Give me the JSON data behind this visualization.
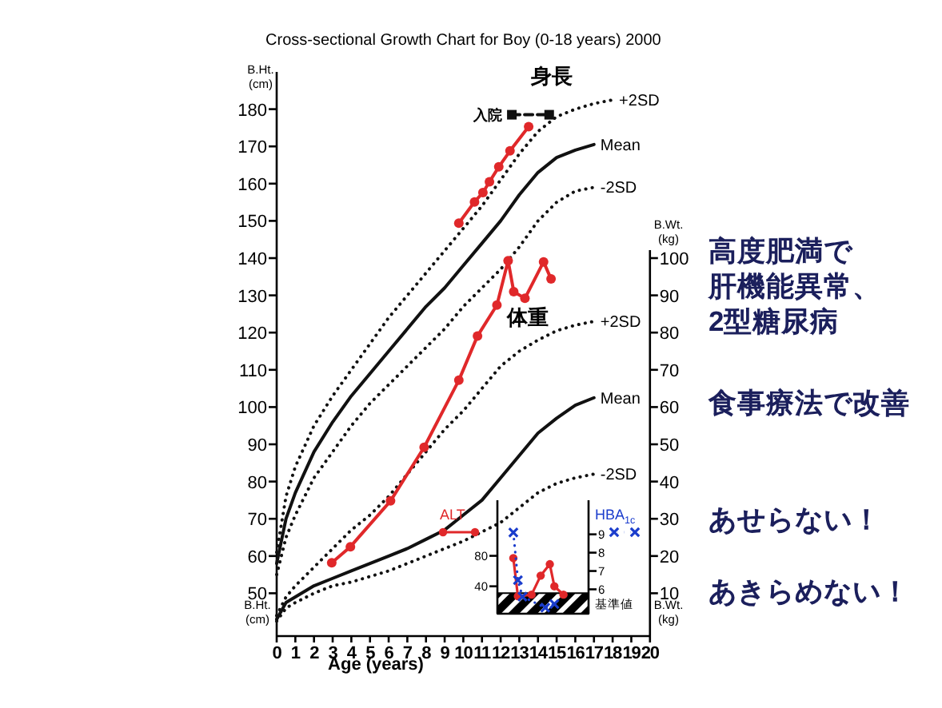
{
  "chart_data": [
    {
      "type": "line",
      "title": "Cross-sectional Growth Chart for Boy (0-18 years) 2000",
      "xlabel": "Age (years)",
      "ylabel": "B.Ht.\n(cm)",
      "y2label": "B.Wt.\n(kg)",
      "xlim": [
        0,
        20
      ],
      "xticks": [
        0,
        1,
        2,
        3,
        4,
        5,
        6,
        7,
        8,
        9,
        10,
        11,
        12,
        13,
        14,
        15,
        16,
        17,
        18,
        19,
        20
      ],
      "ylim": [
        38.5,
        190
      ],
      "yticks": [
        50,
        60,
        70,
        80,
        90,
        100,
        110,
        120,
        130,
        140,
        150,
        160,
        170,
        180
      ],
      "y2lim": [
        -1.5,
        150
      ],
      "y2ticks": [
        10,
        20,
        30,
        40,
        50,
        60,
        70,
        80,
        90,
        100
      ],
      "series": [
        {
          "name": "+2SD",
          "color": "#111111",
          "line_style": "dotted",
          "x": [
            0,
            0.5,
            1,
            2,
            3,
            4,
            5,
            6,
            7,
            8,
            9,
            10,
            11,
            12,
            13,
            14,
            15,
            16,
            17,
            18
          ],
          "values": [
            61,
            76,
            84,
            95,
            103,
            110,
            117,
            124,
            130,
            136,
            142,
            148,
            154,
            161,
            168,
            174,
            178,
            180,
            181.5,
            182.5
          ]
        },
        {
          "name": "Mean",
          "color": "#111111",
          "line_style": "solid",
          "x": [
            0,
            0.5,
            1,
            2,
            3,
            4,
            5,
            6,
            7,
            8,
            9,
            10,
            11,
            12,
            13,
            14,
            15,
            16,
            17
          ],
          "values": [
            58,
            70,
            77,
            88,
            96,
            103,
            109,
            115,
            121,
            127,
            132,
            138,
            144,
            150,
            157,
            163,
            167,
            169,
            170.5
          ]
        },
        {
          "name": "-2SD",
          "color": "#111111",
          "line_style": "dotted",
          "x": [
            0,
            0.5,
            1,
            2,
            3,
            4,
            5,
            6,
            7,
            8,
            9,
            10,
            11,
            12,
            13,
            14,
            15,
            16,
            17
          ],
          "values": [
            55,
            65,
            71,
            81,
            88,
            95,
            101,
            106,
            111,
            116,
            121,
            127,
            132,
            137,
            143,
            150,
            155,
            158,
            159
          ]
        },
        {
          "name": "+2SD",
          "color": "#111111",
          "line_style": "dotted",
          "axis": "y2",
          "x": [
            0,
            0.5,
            1,
            2,
            3,
            4,
            5,
            6,
            7,
            8,
            9,
            10,
            11,
            12,
            13,
            14,
            15,
            16,
            17
          ],
          "values": [
            4,
            9,
            12,
            17,
            22,
            27,
            31,
            36,
            42,
            48,
            54,
            59,
            65,
            71,
            75,
            78,
            80.5,
            82,
            83
          ]
        },
        {
          "name": "Mean",
          "color": "#111111",
          "line_style": "solid",
          "axis": "y2",
          "x": [
            0,
            0.5,
            1,
            2,
            3,
            4,
            5,
            6,
            7,
            8,
            9,
            10,
            11,
            12,
            13,
            14,
            15,
            16,
            17
          ],
          "values": [
            3,
            7.5,
            9,
            12,
            14,
            16,
            18,
            20,
            22,
            24.5,
            27,
            31,
            35,
            41,
            47,
            53,
            57,
            60.5,
            62.5
          ]
        },
        {
          "name": "-2SD",
          "color": "#111111",
          "line_style": "dotted",
          "axis": "y2",
          "x": [
            0,
            0.5,
            1,
            2,
            3,
            4,
            5,
            6,
            7,
            8,
            9,
            10,
            11,
            12,
            13,
            14,
            15,
            16,
            17
          ],
          "values": [
            2.5,
            6,
            7.5,
            10,
            12,
            13,
            14.5,
            16,
            18,
            20,
            22,
            24,
            26.5,
            29,
            33,
            37,
            39.5,
            41,
            42
          ]
        },
        {
          "color": "#e0282a",
          "marker": "circle",
          "line_style": "solid",
          "x": [
            9.76,
            10.6,
            11.05,
            11.4,
            11.9,
            12.5,
            13.5
          ],
          "values": [
            149.4,
            155.1,
            157.6,
            160.5,
            164.5,
            168.8,
            175.3
          ]
        },
        {
          "color": "#e0282a",
          "marker": "circle",
          "line_style": "solid",
          "axis": "y2",
          "x": [
            2.95,
            3.95,
            6.1,
            7.9,
            9.76,
            10.76,
            11.8,
            12.4,
            12.7,
            13.3,
            14.3,
            14.7
          ],
          "values": [
            18.2,
            22.5,
            34.8,
            49.2,
            67.2,
            79.1,
            87.4,
            99.3,
            91,
            89.2,
            99,
            94.4
          ]
        },
        {
          "color": "#111111",
          "marker": "square",
          "line_style": "dashed",
          "x": [
            12.6,
            14.6
          ],
          "values": [
            178.5,
            178.5
          ]
        }
      ],
      "annotations": [
        "身長",
        {
          "text": "入院",
          "x": 12.6,
          "y": 178.5
        },
        "体重",
        "高度肥満で",
        "肝機能異常、",
        "2型糖尿病",
        "食事療法で改善",
        "あせらない！",
        "あきらめない！"
      ]
    },
    {
      "type": "line",
      "categories": [
        null,
        null,
        null,
        null,
        null,
        null,
        null,
        null,
        null,
        null,
        null,
        null,
        null,
        null,
        null,
        null,
        null,
        null,
        null,
        null
      ],
      "ylim": [
        4,
        153
      ],
      "yticks": [
        40,
        80
      ],
      "y2lim": [
        4.67,
        10.86
      ],
      "y2ticks": [
        6,
        7,
        8,
        9
      ],
      "tick_labels": "y",
      "legend": "bottom left",
      "bands": [
        {
          "axis": "y",
          "from": 4,
          "to": 31,
          "label": "基準値",
          "color": "#000000"
        }
      ],
      "series": [
        {
          "name": "ALT",
          "color": "#e0282a",
          "marker": "circle",
          "line_style": "solid",
          "values": [
            null,
            null,
            null,
            77,
            27,
            null,
            null,
            29,
            null,
            54,
            null,
            69,
            40,
            null,
            29,
            null,
            null,
            null,
            null,
            null
          ]
        },
        {
          "name": "HBA$_{1c}$",
          "color": "#1a3ccc",
          "marker": "cross",
          "line_style": "dotted",
          "axis": "y2",
          "values": [
            null,
            null,
            null,
            9.1,
            6.5,
            5.6,
            null,
            null,
            null,
            null,
            5.0,
            null,
            5.2,
            null,
            null,
            null,
            null,
            null,
            null,
            null
          ]
        }
      ]
    }
  ]
}
